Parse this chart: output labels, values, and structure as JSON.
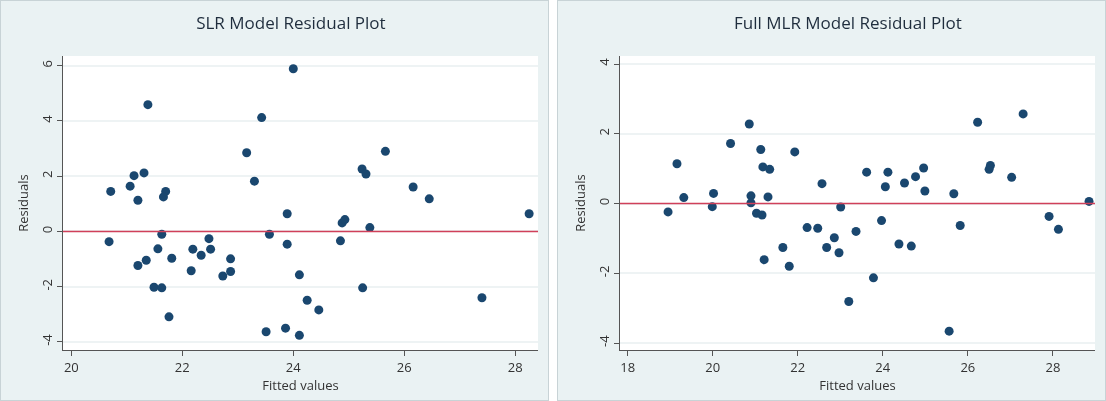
{
  "chart_data": [
    {
      "type": "scatter",
      "title": "SLR Model Residual Plot",
      "xlabel": "Fitted values",
      "ylabel": "Residuals",
      "marker": "circle",
      "grid": "y",
      "xlim": [
        19.85,
        28.41
      ],
      "ylim": [
        -4.29,
        6.35
      ],
      "xticks": [
        20,
        22,
        24,
        26,
        28
      ],
      "yticks": [
        -4,
        -2,
        0,
        2,
        4,
        6
      ],
      "ref_lines": [
        {
          "axis": "y",
          "value": 0,
          "color": "#d0405a"
        }
      ],
      "series": [
        {
          "color": "#1a476f",
          "x": [
            21.38,
            24.0,
            23.43,
            23.16,
            23.3,
            20.71,
            21.06,
            21.13,
            21.31,
            21.2,
            21.7,
            21.66,
            23.89,
            20.68,
            21.63,
            21.56,
            21.2,
            21.35,
            21.81,
            21.49,
            21.63,
            21.76,
            22.19,
            22.34,
            22.48,
            22.51,
            22.16,
            22.87,
            22.87,
            22.73,
            23.57,
            23.89,
            24.11,
            23.51,
            23.86,
            24.11,
            24.25,
            24.46,
            25.66,
            25.24,
            25.31,
            26.16,
            26.45,
            28.25,
            24.88,
            24.93,
            25.38,
            24.85,
            25.25,
            27.4
          ],
          "values": [
            4.59,
            5.89,
            4.12,
            2.85,
            1.82,
            1.45,
            1.64,
            2.02,
            2.12,
            1.13,
            1.45,
            1.25,
            0.64,
            -0.37,
            -0.1,
            -0.63,
            -1.23,
            -1.04,
            -0.97,
            -2.02,
            -2.04,
            -3.09,
            -0.64,
            -0.86,
            -0.26,
            -0.64,
            -1.42,
            -0.99,
            -1.45,
            -1.61,
            -0.1,
            -0.46,
            -1.57,
            -3.63,
            -3.5,
            -3.76,
            -2.49,
            -2.84,
            2.9,
            2.26,
            2.08,
            1.61,
            1.18,
            0.64,
            0.31,
            0.43,
            0.14,
            -0.34,
            -2.04,
            -2.4
          ]
        }
      ]
    },
    {
      "type": "scatter",
      "title": "Full MLR Model Residual Plot",
      "xlabel": "Fitted values",
      "ylabel": "Residuals",
      "marker": "circle",
      "grid": "y",
      "xlim": [
        17.82,
        28.99
      ],
      "ylim": [
        -4.2,
        4.23
      ],
      "xticks": [
        18,
        20,
        22,
        24,
        26,
        28
      ],
      "yticks": [
        -4,
        -2,
        0,
        2,
        4
      ],
      "ref_lines": [
        {
          "axis": "y",
          "value": 0,
          "color": "#d0405a"
        }
      ],
      "series": [
        {
          "color": "#1a476f",
          "x": [
            18.95,
            19.16,
            19.32,
            20.02,
            19.99,
            20.42,
            20.86,
            20.9,
            20.9,
            21.13,
            21.18,
            21.34,
            21.3,
            21.03,
            21.16,
            21.21,
            21.93,
            21.65,
            21.8,
            22.22,
            22.47,
            22.57,
            22.86,
            22.68,
            22.97,
            23.01,
            23.37,
            23.2,
            23.62,
            23.78,
            23.97,
            24.06,
            24.12,
            24.38,
            24.51,
            24.67,
            24.77,
            24.96,
            24.99,
            25.56,
            25.67,
            25.82,
            26.23,
            26.5,
            26.53,
            27.03,
            27.3,
            27.91,
            28.13,
            28.85
          ],
          "values": [
            -0.24,
            1.14,
            0.17,
            0.29,
            -0.09,
            1.72,
            2.28,
            0.22,
            0.02,
            1.55,
            1.05,
            0.98,
            0.19,
            -0.28,
            -0.33,
            -1.61,
            1.48,
            -1.26,
            -1.8,
            -0.69,
            -0.71,
            0.57,
            -0.98,
            -1.26,
            -1.41,
            -0.1,
            -0.8,
            -2.81,
            0.9,
            -2.13,
            -0.49,
            0.48,
            0.9,
            -1.16,
            0.59,
            -1.22,
            0.77,
            1.02,
            0.36,
            -3.66,
            0.28,
            -0.63,
            2.33,
            0.98,
            1.09,
            0.75,
            2.57,
            -0.37,
            -0.74,
            0.06
          ]
        }
      ]
    }
  ]
}
